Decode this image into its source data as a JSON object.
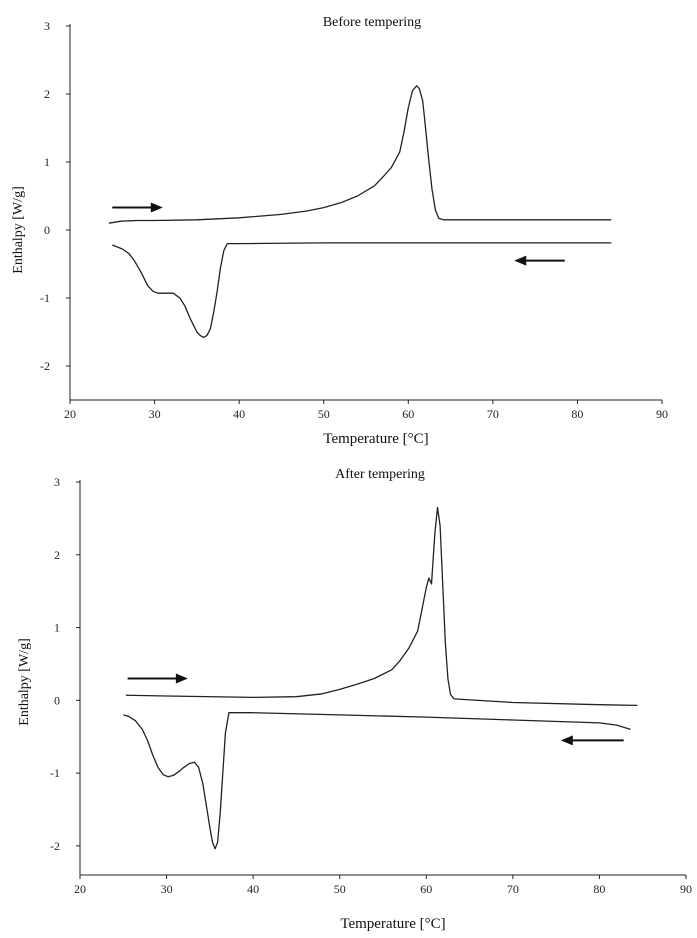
{
  "chart_data": [
    {
      "type": "line",
      "title": "Before tempering",
      "xlabel": "Temperature [°C]",
      "ylabel": "Enthalpy [W/g]",
      "xlim": [
        20,
        90
      ],
      "ylim": [
        -2.5,
        3
      ],
      "xticks": [
        "20",
        "30",
        "40",
        "50",
        "60",
        "70",
        "80",
        "90"
      ],
      "yticks": [
        "-2",
        "-1",
        "0",
        "1",
        "2",
        "3"
      ],
      "grid": false,
      "series": [
        {
          "x": [
            24.6,
            26,
            28,
            30,
            35,
            40,
            45,
            48,
            50,
            52,
            54,
            56,
            57,
            58,
            59,
            59.5,
            60,
            60.5,
            61,
            61.3,
            61.7,
            62,
            62.4,
            62.8,
            63.2,
            63.6,
            64.2,
            70,
            80,
            84
          ],
          "y": [
            0.1,
            0.13,
            0.14,
            0.14,
            0.15,
            0.18,
            0.23,
            0.28,
            0.33,
            0.4,
            0.5,
            0.65,
            0.78,
            0.92,
            1.15,
            1.45,
            1.8,
            2.05,
            2.12,
            2.08,
            1.9,
            1.55,
            1.05,
            0.6,
            0.3,
            0.17,
            0.15,
            0.15,
            0.15,
            0.15
          ]
        },
        {
          "x": [
            84,
            80,
            70,
            60,
            50,
            40,
            38.6,
            38.2,
            37.8,
            37.4,
            37,
            36.6,
            36.2,
            35.8,
            35.4,
            35,
            34.6,
            34.2,
            33.6,
            33,
            32.2,
            31.6,
            31,
            30.4,
            29.8,
            29.2,
            28.4,
            27.6,
            27,
            26.2,
            25.6,
            25
          ],
          "y": [
            -0.19,
            -0.19,
            -0.19,
            -0.19,
            -0.19,
            -0.2,
            -0.2,
            -0.3,
            -0.55,
            -0.9,
            -1.2,
            -1.45,
            -1.55,
            -1.58,
            -1.55,
            -1.5,
            -1.4,
            -1.3,
            -1.12,
            -1.0,
            -0.93,
            -0.93,
            -0.93,
            -0.93,
            -0.9,
            -0.82,
            -0.62,
            -0.45,
            -0.35,
            -0.28,
            -0.25,
            -0.22
          ]
        }
      ],
      "annotations": [
        {
          "type": "arrow",
          "direction": "right",
          "x_from": 25,
          "x_to": 30.5,
          "y": 0.33
        },
        {
          "type": "arrow",
          "direction": "left",
          "x_from": 78.5,
          "x_to": 73,
          "y": -0.45
        }
      ]
    },
    {
      "type": "line",
      "title": "After tempering",
      "xlabel": "Temperature [°C]",
      "ylabel": "Enthalpy [W/g]",
      "xlim": [
        20,
        90
      ],
      "ylim": [
        -2.4,
        3
      ],
      "xticks": [
        "20",
        "30",
        "40",
        "50",
        "60",
        "70",
        "80",
        "90"
      ],
      "yticks": [
        "-2",
        "-1",
        "0",
        "1",
        "2",
        "3"
      ],
      "grid": false,
      "series": [
        {
          "x": [
            25.3,
            30,
            40,
            45,
            48,
            50,
            52,
            54,
            56,
            57,
            58,
            59,
            59.5,
            60,
            60.3,
            60.6,
            61,
            61.3,
            61.6,
            61.9,
            62.2,
            62.5,
            62.8,
            63.2,
            70,
            80,
            84.4
          ],
          "y": [
            0.07,
            0.06,
            0.04,
            0.05,
            0.09,
            0.15,
            0.22,
            0.3,
            0.42,
            0.55,
            0.72,
            0.95,
            1.25,
            1.55,
            1.68,
            1.6,
            2.3,
            2.65,
            2.4,
            1.6,
            0.8,
            0.3,
            0.08,
            0.02,
            -0.03,
            -0.06,
            -0.07
          ]
        },
        {
          "x": [
            83.6,
            82,
            80,
            70,
            60,
            50,
            40,
            37.2,
            36.8,
            36.5,
            36.2,
            35.9,
            35.6,
            35.3,
            35,
            34.6,
            34.2,
            33.7,
            33.2,
            32.6,
            32,
            31.4,
            30.8,
            30.2,
            29.6,
            29,
            28.4,
            27.8,
            27.2,
            26.4,
            25.6,
            25
          ],
          "y": [
            -0.4,
            -0.34,
            -0.31,
            -0.27,
            -0.23,
            -0.2,
            -0.17,
            -0.17,
            -0.45,
            -1.0,
            -1.55,
            -1.95,
            -2.04,
            -1.95,
            -1.75,
            -1.45,
            -1.15,
            -0.92,
            -0.85,
            -0.87,
            -0.92,
            -0.98,
            -1.03,
            -1.05,
            -1.02,
            -0.92,
            -0.75,
            -0.55,
            -0.4,
            -0.28,
            -0.22,
            -0.2
          ]
        }
      ],
      "annotations": [
        {
          "type": "arrow",
          "direction": "right",
          "x_from": 25.5,
          "x_to": 32,
          "y": 0.3
        },
        {
          "type": "arrow",
          "direction": "left",
          "x_from": 82.8,
          "x_to": 76,
          "y": -0.55
        }
      ]
    }
  ]
}
